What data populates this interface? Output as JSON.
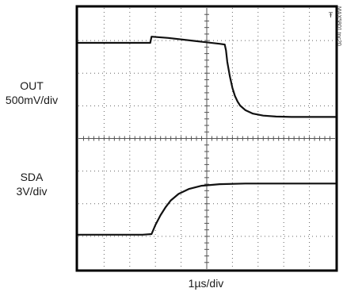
{
  "chart_data": {
    "type": "line",
    "title": "",
    "x_label": "1µs/div",
    "divisions": {
      "x": 10,
      "y": 8
    },
    "x_range_div": [
      0,
      10
    ],
    "y_range_div": [
      0,
      8
    ],
    "grid": true,
    "series": [
      {
        "name": "OUT",
        "scale": "500mV/div",
        "x_div": [
          0,
          1.0,
          2.0,
          2.8,
          2.85,
          3.5,
          4.5,
          5.5,
          5.7,
          5.75,
          5.8,
          5.9,
          6.0,
          6.1,
          6.2,
          6.3,
          6.5,
          6.8,
          7.2,
          7.7,
          8.3,
          9.0,
          10.0
        ],
        "y_div": [
          6.93,
          6.93,
          6.93,
          6.93,
          7.12,
          7.08,
          6.99,
          6.9,
          6.88,
          6.7,
          6.35,
          5.9,
          5.55,
          5.3,
          5.13,
          5.01,
          4.87,
          4.76,
          4.7,
          4.67,
          4.66,
          4.66,
          4.66
        ]
      },
      {
        "name": "SDA",
        "scale": "3V/div",
        "x_div": [
          0,
          1.0,
          2.0,
          2.5,
          2.85,
          3.0,
          3.2,
          3.4,
          3.6,
          3.9,
          4.3,
          4.8,
          5.5,
          6.5,
          8.0,
          10.0
        ],
        "y_div": [
          1.05,
          1.05,
          1.05,
          1.05,
          1.07,
          1.35,
          1.65,
          1.9,
          2.1,
          2.3,
          2.45,
          2.55,
          2.6,
          2.62,
          2.62,
          2.62
        ]
      }
    ]
  },
  "labels": {
    "out_name": "OUT",
    "out_scale": "500mV/div",
    "sda_name": "SDA",
    "sda_scale": "3V/div",
    "x_scale": "1µs/div",
    "figure_id": "MAX5801 toc20"
  }
}
